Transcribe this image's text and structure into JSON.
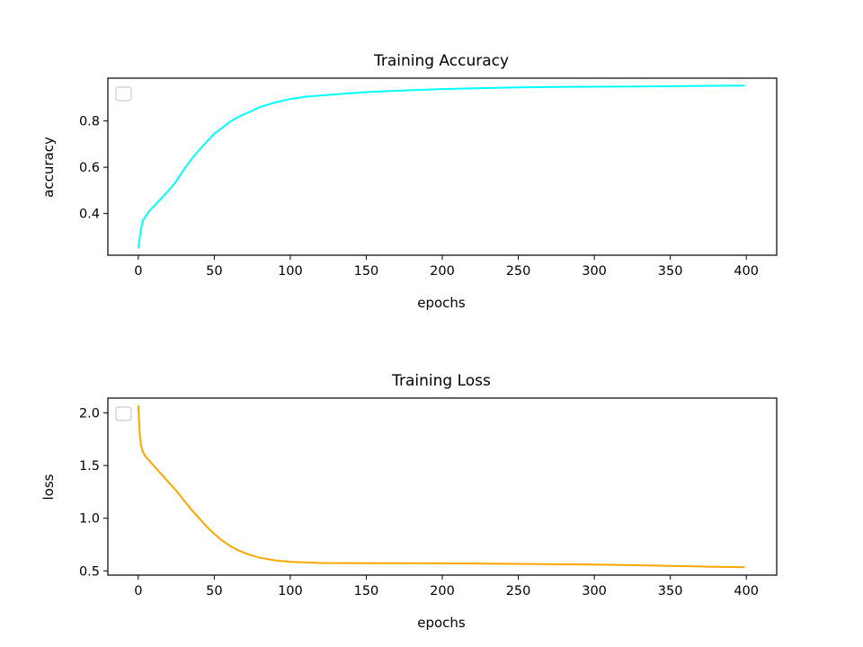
{
  "chart_data": [
    {
      "type": "line",
      "title": "Training Accuracy",
      "xlabel": "epochs",
      "ylabel": "accuracy",
      "xlim": [
        -20,
        420
      ],
      "ylim": [
        0.22,
        0.985
      ],
      "xticks": [
        0,
        50,
        100,
        150,
        200,
        250,
        300,
        350,
        400
      ],
      "yticks": [
        0.4,
        0.6,
        0.8
      ],
      "ytick_labels": [
        "0.4",
        "0.6",
        "0.8"
      ],
      "legend": "upper-left (empty)",
      "grid": false,
      "series": [
        {
          "color": "#00ffff",
          "x": [
            0,
            1,
            2,
            3,
            5,
            7,
            10,
            15,
            20,
            25,
            30,
            35,
            40,
            45,
            50,
            55,
            60,
            65,
            70,
            75,
            80,
            90,
            100,
            110,
            120,
            130,
            140,
            150,
            175,
            200,
            225,
            250,
            275,
            300,
            325,
            350,
            375,
            399
          ],
          "y": [
            0.25,
            0.3,
            0.34,
            0.37,
            0.39,
            0.41,
            0.43,
            0.465,
            0.5,
            0.54,
            0.59,
            0.635,
            0.675,
            0.71,
            0.745,
            0.77,
            0.795,
            0.815,
            0.83,
            0.845,
            0.86,
            0.88,
            0.895,
            0.905,
            0.91,
            0.915,
            0.92,
            0.925,
            0.932,
            0.938,
            0.942,
            0.945,
            0.947,
            0.948,
            0.949,
            0.95,
            0.952,
            0.953
          ]
        }
      ]
    },
    {
      "type": "line",
      "title": "Training Loss",
      "xlabel": "epochs",
      "ylabel": "loss",
      "xlim": [
        -20,
        420
      ],
      "ylim": [
        0.46,
        2.14
      ],
      "xticks": [
        0,
        50,
        100,
        150,
        200,
        250,
        300,
        350,
        400
      ],
      "yticks": [
        0.5,
        1.0,
        1.5,
        2.0
      ],
      "ytick_labels": [
        "0.5",
        "1.0",
        "1.5",
        "2.0"
      ],
      "legend": "upper-left (empty)",
      "grid": false,
      "series": [
        {
          "color": "#ffa500",
          "x": [
            0,
            1,
            2,
            3,
            5,
            7,
            10,
            15,
            20,
            25,
            30,
            35,
            40,
            45,
            50,
            55,
            60,
            65,
            70,
            75,
            80,
            90,
            100,
            120,
            150,
            200,
            250,
            300,
            325,
            350,
            375,
            399
          ],
          "y": [
            2.07,
            1.78,
            1.68,
            1.63,
            1.58,
            1.55,
            1.5,
            1.42,
            1.34,
            1.26,
            1.17,
            1.08,
            1.0,
            0.92,
            0.85,
            0.79,
            0.74,
            0.7,
            0.67,
            0.645,
            0.625,
            0.6,
            0.585,
            0.575,
            0.573,
            0.572,
            0.567,
            0.56,
            0.555,
            0.548,
            0.54,
            0.535
          ]
        }
      ]
    }
  ]
}
